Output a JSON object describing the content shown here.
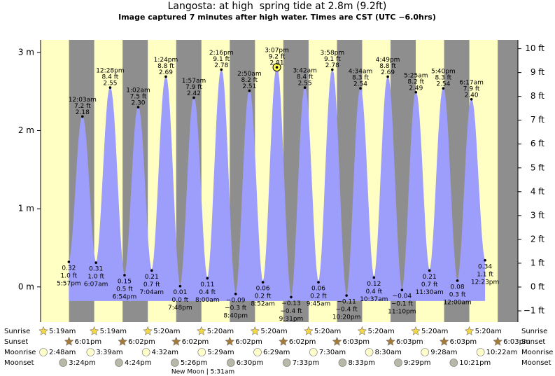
{
  "chart_data": {
    "type": "area",
    "title": "Langosta: at high  spring tide at 2.8m (9.2ft)",
    "subtitle": "Image captured 7 minutes after high water. Times are CST (UTC −6.0hrs)",
    "color": "#9d9dfb",
    "day_color": "#ffffc4",
    "night_color": "#8e8e8e",
    "ylim": [
      -0.45,
      3.16
    ],
    "yticks": [
      {
        "value": 0,
        "label": "0 m"
      },
      {
        "value": 1,
        "label": "1 m"
      },
      {
        "value": 2,
        "label": "2 m"
      },
      {
        "value": 3,
        "label": "3 m"
      }
    ],
    "y2lim": [
      -1.47,
      10.37
    ],
    "y2ticks": [
      {
        "value": -1,
        "label": "−1 ft"
      },
      {
        "value": 0,
        "label": "0 ft"
      },
      {
        "value": 1,
        "label": "1 ft"
      },
      {
        "value": 2,
        "label": "2 ft"
      },
      {
        "value": 3,
        "label": "3 ft"
      },
      {
        "value": 4,
        "label": "4 ft"
      },
      {
        "value": 5,
        "label": "5 ft"
      },
      {
        "value": 6,
        "label": "6 ft"
      },
      {
        "value": 7,
        "label": "7 ft"
      },
      {
        "value": 8,
        "label": "8 ft"
      },
      {
        "value": 9,
        "label": "9 ft"
      },
      {
        "value": 10,
        "label": "10 ft"
      }
    ],
    "times": [
      "5:57pm",
      "12:03am",
      "6:07am",
      "12:28pm",
      "6:54pm",
      "1:02am",
      "7:04am",
      "1:24pm",
      "7:48pm",
      "1:57am",
      "8:00am",
      "2:16pm",
      "8:40pm",
      "2:50am",
      "8:52am",
      "3:07pm",
      "9:31pm",
      "3:42am",
      "9:45am",
      "3:58pm",
      "10:20pm",
      "4:34am",
      "10:37am",
      "4:49pm",
      "11:10pm",
      "5:25am",
      "11:30am",
      "5:40pm",
      "12:00am",
      "6:17am",
      "12:23pm"
    ],
    "values": [
      0.32,
      2.18,
      0.31,
      2.55,
      0.15,
      2.3,
      0.21,
      2.69,
      0.01,
      2.42,
      0.11,
      2.78,
      -0.09,
      2.51,
      0.06,
      2.81,
      -0.13,
      2.55,
      0.06,
      2.78,
      -0.11,
      2.54,
      0.12,
      2.69,
      -0.04,
      2.49,
      0.21,
      2.54,
      0.08,
      2.4,
      0.34
    ],
    "value_labels": [
      "0.32",
      "2.18",
      "0.31",
      "2.55",
      "0.15",
      "2.30",
      "0.21",
      "2.69",
      "0.01",
      "2.42",
      "0.11",
      "2.78",
      "−0.09",
      "2.51",
      "0.06",
      "2.81",
      "−0.13",
      "2.55",
      "0.06",
      "2.78",
      "−0.11",
      "2.54",
      "0.12",
      "2.69",
      "−0.04",
      "2.49",
      "0.21",
      "2.54",
      "0.08",
      "2.40",
      "0.34"
    ],
    "feet_labels": [
      "1.0 ft",
      "7.2 ft",
      "1.0 ft",
      "8.4 ft",
      "0.5 ft",
      "7.5 ft",
      "0.7 ft",
      "8.8 ft",
      "0.0 ft",
      "7.9 ft",
      "0.4 ft",
      "9.1 ft",
      "−0.3 ft",
      "8.2 ft",
      "0.2 ft",
      "9.2 ft",
      "−0.4 ft",
      "8.4 ft",
      "0.2 ft",
      "9.1 ft",
      "−0.4 ft",
      "8.3 ft",
      "0.4 ft",
      "8.8 ft",
      "−0.1 ft",
      "8.2 ft",
      "0.7 ft",
      "8.3 ft",
      "0.3 ft",
      "7.9 ft",
      "1.1 ft"
    ],
    "highlight": 15
  },
  "astronomy": {
    "rows": [
      {
        "name": "Sunrise",
        "times": [
          "5:19am",
          "5:19am",
          "5:20am",
          "5:20am",
          "5:20am",
          "5:20am",
          "5:20am",
          "5:20am",
          "5:20am"
        ]
      },
      {
        "name": "Sunset",
        "times": [
          "6:01pm",
          "6:02pm",
          "6:02pm",
          "6:02pm",
          "6:02pm",
          "6:03pm",
          "6:03pm",
          "6:03pm",
          "6:03pm"
        ]
      },
      {
        "name": "Moonrise",
        "times": [
          "2:48am",
          "3:39am",
          "4:32am",
          "5:29am",
          "6:29am",
          "7:30am",
          "8:30am",
          "9:28am",
          "10:22am"
        ]
      },
      {
        "name": "Moonset",
        "times": [
          "3:24pm",
          "4:24pm",
          "5:26pm",
          "6:30pm",
          "7:33pm",
          "8:33pm",
          "9:29pm",
          "10:21pm"
        ]
      }
    ],
    "moon_phase": "New Moon | 5:31am"
  }
}
